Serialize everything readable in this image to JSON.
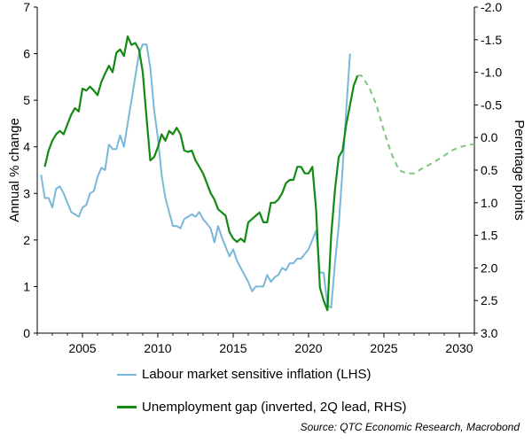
{
  "chart_data": {
    "type": "line",
    "title": "",
    "ylabel": "Annual % change",
    "y2label": "Perentage points",
    "xlim": [
      2002,
      2031
    ],
    "ylim": [
      0,
      7
    ],
    "y2lim": [
      -2.0,
      3.0
    ],
    "y2_inverted": true,
    "xticks": [
      "2005",
      "2010",
      "2015",
      "2020",
      "2025",
      "2030"
    ],
    "yticks": [
      "0",
      "1",
      "2",
      "3",
      "4",
      "5",
      "6",
      "7"
    ],
    "y2ticks": [
      "-2.0",
      "-1.5",
      "-1.0",
      "-0.5",
      "0.0",
      "0.5",
      "1.0",
      "1.5",
      "2.0",
      "2.5",
      "3.0"
    ],
    "grid": false,
    "legend_position": "bottom",
    "source": "Source: QTC Economic Research, Macrobond",
    "colors": {
      "lhs": "#7ab8d9",
      "rhs": "#138a13",
      "forecast": "#7dc47d"
    },
    "series": [
      {
        "name": "Labour market sensitive inflation (LHS)",
        "axis": "left",
        "style": "solid",
        "x": [
          2002.25,
          2002.5,
          2002.75,
          2003.0,
          2003.25,
          2003.5,
          2003.75,
          2004.0,
          2004.25,
          2004.5,
          2004.75,
          2005.0,
          2005.25,
          2005.5,
          2005.75,
          2006.0,
          2006.25,
          2006.5,
          2006.75,
          2007.0,
          2007.25,
          2007.5,
          2007.75,
          2008.0,
          2008.25,
          2008.5,
          2008.75,
          2009.0,
          2009.25,
          2009.5,
          2009.75,
          2010.0,
          2010.25,
          2010.5,
          2010.75,
          2011.0,
          2011.25,
          2011.5,
          2011.75,
          2012.0,
          2012.25,
          2012.5,
          2012.75,
          2013.0,
          2013.25,
          2013.5,
          2013.75,
          2014.0,
          2014.25,
          2014.5,
          2014.75,
          2015.0,
          2015.25,
          2015.5,
          2015.75,
          2016.0,
          2016.25,
          2016.5,
          2016.75,
          2017.0,
          2017.25,
          2017.5,
          2017.75,
          2018.0,
          2018.25,
          2018.5,
          2018.75,
          2019.0,
          2019.25,
          2019.5,
          2019.75,
          2020.0,
          2020.25,
          2020.5,
          2020.75,
          2021.0,
          2021.25,
          2021.5,
          2021.75,
          2022.0,
          2022.25,
          2022.5,
          2022.75
        ],
        "values": [
          3.4,
          2.9,
          2.9,
          2.7,
          3.1,
          3.15,
          3.0,
          2.8,
          2.6,
          2.55,
          2.5,
          2.7,
          2.75,
          3.0,
          3.05,
          3.35,
          3.55,
          3.5,
          4.05,
          3.95,
          3.95,
          4.25,
          4.0,
          4.5,
          5.0,
          5.5,
          6.0,
          6.2,
          6.2,
          5.7,
          4.8,
          4.2,
          3.4,
          2.9,
          2.6,
          2.3,
          2.3,
          2.25,
          2.45,
          2.5,
          2.55,
          2.5,
          2.6,
          2.45,
          2.35,
          2.25,
          1.95,
          2.3,
          2.05,
          1.85,
          1.65,
          1.8,
          1.55,
          1.4,
          1.25,
          1.1,
          0.9,
          1.0,
          1.0,
          1.0,
          1.25,
          1.1,
          1.2,
          1.25,
          1.4,
          1.35,
          1.5,
          1.5,
          1.6,
          1.6,
          1.7,
          1.8,
          2.0,
          2.2,
          1.3,
          1.3,
          0.6,
          0.55,
          1.5,
          2.3,
          3.5,
          4.8,
          6.0
        ]
      },
      {
        "name": "Unemployment gap (inverted, 2Q lead, RHS)",
        "axis": "right",
        "style": "solid",
        "x": [
          2002.5,
          2002.75,
          2003.0,
          2003.25,
          2003.5,
          2003.75,
          2004.0,
          2004.25,
          2004.5,
          2004.75,
          2005.0,
          2005.25,
          2005.5,
          2005.75,
          2006.0,
          2006.25,
          2006.5,
          2006.75,
          2007.0,
          2007.25,
          2007.5,
          2007.75,
          2008.0,
          2008.25,
          2008.5,
          2008.75,
          2009.0,
          2009.25,
          2009.5,
          2009.75,
          2010.0,
          2010.25,
          2010.5,
          2010.75,
          2011.0,
          2011.25,
          2011.5,
          2011.75,
          2012.0,
          2012.25,
          2012.5,
          2012.75,
          2013.0,
          2013.25,
          2013.5,
          2013.75,
          2014.0,
          2014.25,
          2014.5,
          2014.75,
          2015.0,
          2015.25,
          2015.5,
          2015.75,
          2016.0,
          2016.25,
          2016.5,
          2016.75,
          2017.0,
          2017.25,
          2017.5,
          2017.75,
          2018.0,
          2018.25,
          2018.5,
          2018.75,
          2019.0,
          2019.25,
          2019.5,
          2019.75,
          2020.0,
          2020.25,
          2020.5,
          2020.75,
          2021.0,
          2021.25,
          2021.5,
          2021.75,
          2022.0,
          2022.25,
          2022.5,
          2022.75,
          2023.0,
          2023.25
        ],
        "values": [
          0.45,
          0.2,
          0.05,
          -0.05,
          -0.1,
          -0.05,
          -0.2,
          -0.35,
          -0.45,
          -0.4,
          -0.75,
          -0.72,
          -0.78,
          -0.72,
          -0.65,
          -0.85,
          -0.98,
          -1.1,
          -1.0,
          -1.3,
          -1.35,
          -1.25,
          -1.55,
          -1.42,
          -1.45,
          -1.35,
          -1.0,
          -0.3,
          0.35,
          0.3,
          0.15,
          -0.05,
          0.05,
          -0.1,
          -0.05,
          -0.15,
          -0.05,
          0.2,
          0.22,
          0.2,
          0.35,
          0.45,
          0.55,
          0.7,
          0.85,
          0.95,
          1.1,
          1.15,
          1.2,
          1.45,
          1.55,
          1.6,
          1.55,
          1.6,
          1.3,
          1.25,
          1.2,
          1.15,
          1.3,
          1.3,
          1.0,
          1.0,
          0.95,
          0.85,
          0.7,
          0.65,
          0.65,
          0.45,
          0.45,
          0.55,
          0.55,
          0.45,
          1.1,
          2.3,
          2.5,
          2.65,
          1.5,
          0.8,
          0.3,
          0.2,
          -0.2,
          -0.5,
          -0.8,
          -0.95
        ],
        "forecast": {
          "style": "dashed",
          "x": [
            2023.25,
            2023.5,
            2024.0,
            2024.5,
            2025.0,
            2025.5,
            2026.0,
            2026.5,
            2027.0,
            2027.5,
            2028.0,
            2028.5,
            2029.0,
            2029.5,
            2030.0,
            2030.5,
            2031.0
          ],
          "values": [
            -0.95,
            -0.95,
            -0.78,
            -0.5,
            -0.1,
            0.25,
            0.5,
            0.55,
            0.55,
            0.48,
            0.42,
            0.35,
            0.28,
            0.2,
            0.15,
            0.12,
            0.1
          ]
        }
      }
    ]
  }
}
